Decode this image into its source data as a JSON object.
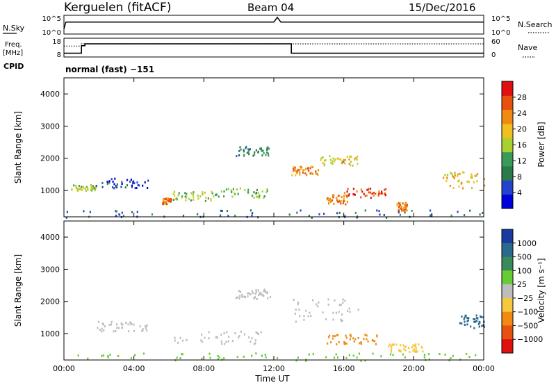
{
  "header": {
    "station": "Kerguelen (fitACF)",
    "beam": "Beam 04",
    "date": "15/Dec/2016"
  },
  "chart_data": [
    {
      "type": "line",
      "panel": "noise",
      "left_label": "N.Sky",
      "right_label": "N.Search",
      "left_ticks": [
        "10^5",
        "10^0"
      ],
      "right_ticks": [
        "10^5",
        "10^0"
      ],
      "description_series": [
        {
          "name": "N.Sky",
          "x_hours": [
            0.0,
            0.1,
            0.2,
            12.0,
            12.2,
            12.4,
            24.0
          ],
          "values_log10": [
            1.0,
            3.3,
            3.4,
            3.4,
            5.0,
            3.4,
            3.4
          ]
        }
      ]
    },
    {
      "type": "line",
      "panel": "frequency",
      "left_label_top": "Freq.",
      "left_label_bottom": "[MHz]",
      "right_label": "Nave",
      "cpid_label": "CPID",
      "left_ticks": [
        "18",
        "8"
      ],
      "right_ticks": [
        "60",
        "0"
      ],
      "freq_series": {
        "x_hours": [
          0,
          1.0,
          1.0,
          1.2,
          1.2,
          13.0,
          13.0,
          24.0
        ],
        "values": [
          10,
          10,
          14,
          14,
          15,
          15,
          10,
          10
        ]
      },
      "nave_series": {
        "x_hours": [
          0,
          1.0,
          1.0,
          24.0
        ],
        "values": [
          35,
          35,
          42,
          42
        ]
      }
    },
    {
      "type": "heatmap",
      "panel": "power",
      "ylabel": "Slant Range [km]",
      "yticks": [
        "4000",
        "3000",
        "2000",
        "1000"
      ],
      "ylim": [
        180,
        4500
      ],
      "xlim": [
        0,
        24
      ],
      "colorbar_label": "Power [dB]",
      "colorbar_ticks": [
        "28",
        "24",
        "20",
        "16",
        "12",
        "8",
        "4"
      ],
      "colorbar_colors": [
        "#0000dd",
        "#2244cc",
        "#2a7a4a",
        "#3a9a5a",
        "#a8d030",
        "#f0c020",
        "#f08a10",
        "#e85010",
        "#e01010"
      ],
      "regions": [
        {
          "t": [
            0.4,
            1.8
          ],
          "r": [
            1000,
            1200
          ],
          "v": 16
        },
        {
          "t": [
            1.8,
            4.8
          ],
          "r": [
            1100,
            1400
          ],
          "v": 4
        },
        {
          "t": [
            5.6,
            6.1
          ],
          "r": [
            600,
            800
          ],
          "v": 24
        },
        {
          "t": [
            6.2,
            8.6
          ],
          "r": [
            700,
            1000
          ],
          "v": 16
        },
        {
          "t": [
            8.6,
            11.6
          ],
          "r": [
            800,
            1100
          ],
          "v": 14
        },
        {
          "t": [
            9.8,
            11.8
          ],
          "r": [
            2100,
            2400
          ],
          "v": 10
        },
        {
          "t": [
            13.0,
            14.6
          ],
          "r": [
            1500,
            1800
          ],
          "v": 24
        },
        {
          "t": [
            14.6,
            16.8
          ],
          "r": [
            1800,
            2100
          ],
          "v": 18
        },
        {
          "t": [
            16.0,
            18.5
          ],
          "r": [
            800,
            1100
          ],
          "v": 28
        },
        {
          "t": [
            15.0,
            16.2
          ],
          "r": [
            600,
            900
          ],
          "v": 24
        },
        {
          "t": [
            19.0,
            19.6
          ],
          "r": [
            400,
            650
          ],
          "v": 24
        },
        {
          "t": [
            21.6,
            24.0
          ],
          "r": [
            1100,
            1600
          ],
          "v": 20
        },
        {
          "t": [
            0.0,
            24.0
          ],
          "r": [
            180,
            420
          ],
          "v": 8
        }
      ]
    },
    {
      "type": "heatmap",
      "panel": "velocity",
      "ylabel": "Slant Range [km]",
      "yticks": [
        "4000",
        "3000",
        "2000",
        "1000"
      ],
      "ylim": [
        180,
        4500
      ],
      "xlim": [
        0,
        24
      ],
      "xticks": [
        "00:00",
        "04:00",
        "08:00",
        "12:00",
        "16:00",
        "20:00",
        "00:00"
      ],
      "xlabel": "Time UT",
      "colorbar_label": "Velocity [m s⁻¹]",
      "colorbar_ticks": [
        "1000",
        "500",
        "100",
        "25",
        "−25",
        "−100",
        "−500",
        "−1000"
      ],
      "colorbar_colors": [
        "#1a3aa0",
        "#2a6a8a",
        "#3a8a5a",
        "#66cc33",
        "#bdbdbd",
        "#f5c842",
        "#f08a10",
        "#e85010",
        "#e01010"
      ],
      "regions": [
        {
          "t": [
            1.8,
            4.8
          ],
          "r": [
            1100,
            1400
          ],
          "v": 0
        },
        {
          "t": [
            6.2,
            11.6
          ],
          "r": [
            700,
            1100
          ],
          "v": 0
        },
        {
          "t": [
            9.8,
            11.8
          ],
          "r": [
            2100,
            2400
          ],
          "v": 0
        },
        {
          "t": [
            13.0,
            16.8
          ],
          "r": [
            1400,
            2100
          ],
          "v": 0
        },
        {
          "t": [
            15.0,
            18.0
          ],
          "r": [
            700,
            1000
          ],
          "v": -150
        },
        {
          "t": [
            18.5,
            20.5
          ],
          "r": [
            450,
            700
          ],
          "v": -80
        },
        {
          "t": [
            22.5,
            24.0
          ],
          "r": [
            1200,
            1600
          ],
          "v": 600
        },
        {
          "t": [
            0.0,
            24.0
          ],
          "r": [
            180,
            420
          ],
          "v": 60
        }
      ]
    }
  ]
}
